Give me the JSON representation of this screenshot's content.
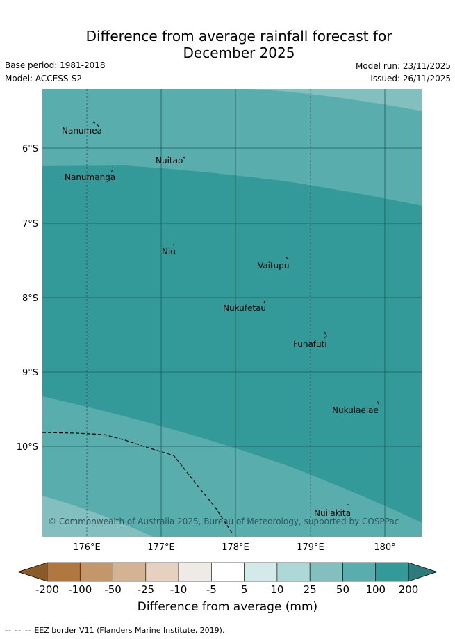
{
  "title": "Difference from average rainfall forecast for\nDecember 2025",
  "meta": {
    "base_period": "Base period: 1981-2018",
    "model": "Model: ACCESS-S2",
    "model_run": "Model run: 23/11/2025",
    "issued": "Issued: 26/11/2025"
  },
  "map": {
    "lon_ticks": [
      "176°E",
      "177°E",
      "178°E",
      "179°E",
      "180°"
    ],
    "lat_ticks": [
      "6°S",
      "7°S",
      "8°S",
      "9°S",
      "10°S"
    ],
    "places": [
      "Nanumea",
      "Nuitao",
      "Nanumanga",
      "Niu",
      "Vaitupu",
      "Nukufetau",
      "Funafuti",
      "Nukulaelae",
      "Nuilakita"
    ],
    "copyright": "© Commonwealth of Australia 2025, Bureau of Meteorology, supported by COSPPac",
    "colors": {
      "band_25": "#83bfbf",
      "band_50": "#5aadad",
      "band_100": "#339a99",
      "grid": "#1c5a58"
    }
  },
  "colorbar": {
    "labels": [
      "-200",
      "-100",
      "-50",
      "-25",
      "-10",
      "-5",
      "5",
      "10",
      "25",
      "50",
      "100",
      "200"
    ],
    "colors": [
      "#8b5a2b",
      "#b07740",
      "#c3966b",
      "#d4b393",
      "#e6d0bf",
      "#eeeae6",
      "#ffffff",
      "#d4eaea",
      "#acd8d8",
      "#83bfbf",
      "#5aadad",
      "#339a99",
      "#2c7c7b"
    ],
    "axis_label": "Difference from average (mm)"
  },
  "footnote": {
    "dash": "-- -- --",
    "text": "EEZ border V11 (Flanders Marine Institute, 2019)."
  }
}
